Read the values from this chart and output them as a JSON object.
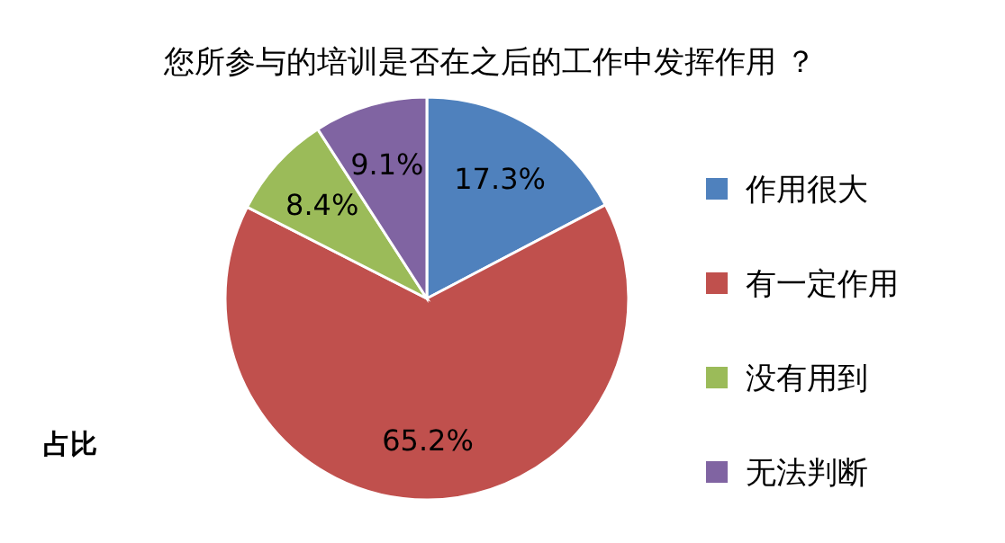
{
  "chart_data": {
    "type": "pie",
    "title": "您所参与的培训是否在之后的工作中发挥作用 ？",
    "categories": [
      "作用很大",
      "有一定作用",
      "没有用到",
      "无法判断"
    ],
    "values": [
      17.3,
      65.2,
      8.4,
      9.1
    ],
    "value_labels": [
      "17.3%",
      "65.2%",
      "8.4%",
      "9.1%"
    ],
    "colors": [
      "#4f81bd",
      "#c0504d",
      "#9bbb59",
      "#8064a2"
    ],
    "legend": "right",
    "annotations": [
      "占比"
    ]
  }
}
